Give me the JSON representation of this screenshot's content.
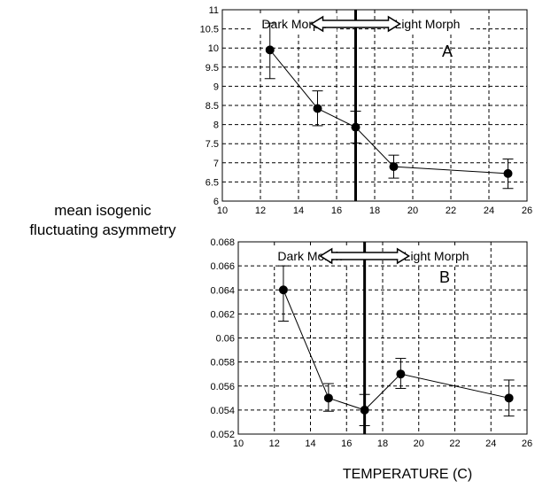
{
  "figure": {
    "ylabel": [
      "mean isogenic",
      "fluctuating asymmetry"
    ],
    "xlabel": "TEMPERATURE (C)"
  },
  "chart_data": [
    {
      "type": "line",
      "panel_label": "A",
      "x": [
        12.5,
        15,
        17,
        19,
        25
      ],
      "series": [
        {
          "values": [
            9.95,
            8.42,
            7.93,
            6.9,
            6.72
          ],
          "error_low": [
            9.2,
            7.97,
            7.52,
            6.6,
            6.33
          ],
          "error_high": [
            10.65,
            8.88,
            8.35,
            7.2,
            7.1
          ]
        }
      ],
      "xlim": [
        10,
        26
      ],
      "ylim": [
        6,
        11
      ],
      "xticks": [
        "10",
        "12",
        "14",
        "16",
        "18",
        "20",
        "22",
        "24",
        "26"
      ],
      "yticks": [
        "6",
        "6.5",
        "7",
        "7.5",
        "8",
        "8.5",
        "9",
        "9.5",
        "10",
        "10.5",
        "11"
      ],
      "grid": true,
      "divider_x": 17,
      "annotations": {
        "left": "Dark Morph",
        "right": "Light Morph"
      }
    },
    {
      "type": "line",
      "panel_label": "B",
      "x": [
        12.5,
        15,
        17,
        19,
        25
      ],
      "series": [
        {
          "values": [
            0.064,
            0.055,
            0.054,
            0.057,
            0.055
          ],
          "error_low": [
            0.0614,
            0.0539,
            0.0527,
            0.0558,
            0.0535
          ],
          "error_high": [
            0.066,
            0.0562,
            0.0553,
            0.0583,
            0.0565
          ]
        }
      ],
      "xlim": [
        10,
        26
      ],
      "ylim": [
        0.052,
        0.068
      ],
      "xticks": [
        "10",
        "12",
        "14",
        "16",
        "18",
        "20",
        "22",
        "24",
        "26"
      ],
      "yticks": [
        "0.052",
        "0.054",
        "0.056",
        "0.058",
        "0.06",
        "0.062",
        "0.064",
        "0.066",
        "0.068"
      ],
      "grid": true,
      "divider_x": 17,
      "annotations": {
        "left": "Dark Morph",
        "right": "Light Morph"
      }
    }
  ]
}
